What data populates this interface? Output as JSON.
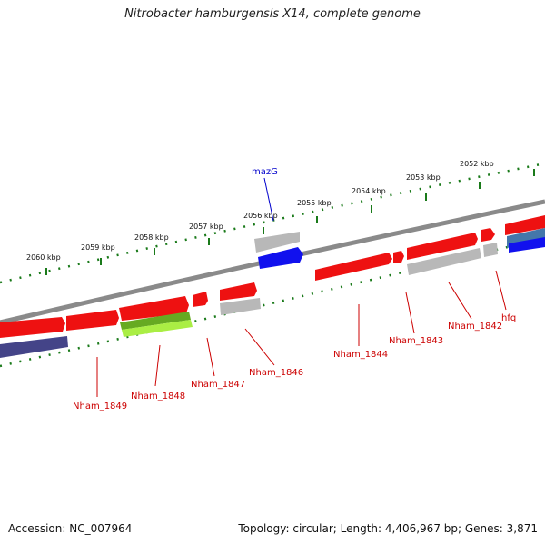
{
  "title": "Nitrobacter hamburgensis X14, complete genome",
  "footer": {
    "accession": "Accession: NC_007964",
    "summary": "Topology: circular; Length: 4,406,967 bp; Genes: 3,871"
  },
  "kbp_labels": [
    "2060 kbp",
    "2059 kbp",
    "2058 kbp",
    "2057 kbp",
    "2056 kbp",
    "2055 kbp",
    "2054 kbp",
    "2053 kbp",
    "2052 kbp"
  ],
  "gene_labels": [
    "Nham_1849",
    "Nham_1848",
    "Nham_1847",
    "Nham_1846",
    "Nham_1844",
    "Nham_1843",
    "Nham_1842",
    "hfq"
  ],
  "top_label": "mazG",
  "colors": {
    "backbone": "#8a8a8a",
    "cds_red": "#ee1111",
    "cds_gray": "#b8b8b8",
    "cds_blue": "#1111ee",
    "cds_green": "#66aa22",
    "cds_lime": "#aaee44",
    "cds_navy": "#444488",
    "cds_steel": "#4477aa",
    "tick": "#1a7a1a",
    "label_red": "#cc0000",
    "label_blue": "#0000cc"
  }
}
